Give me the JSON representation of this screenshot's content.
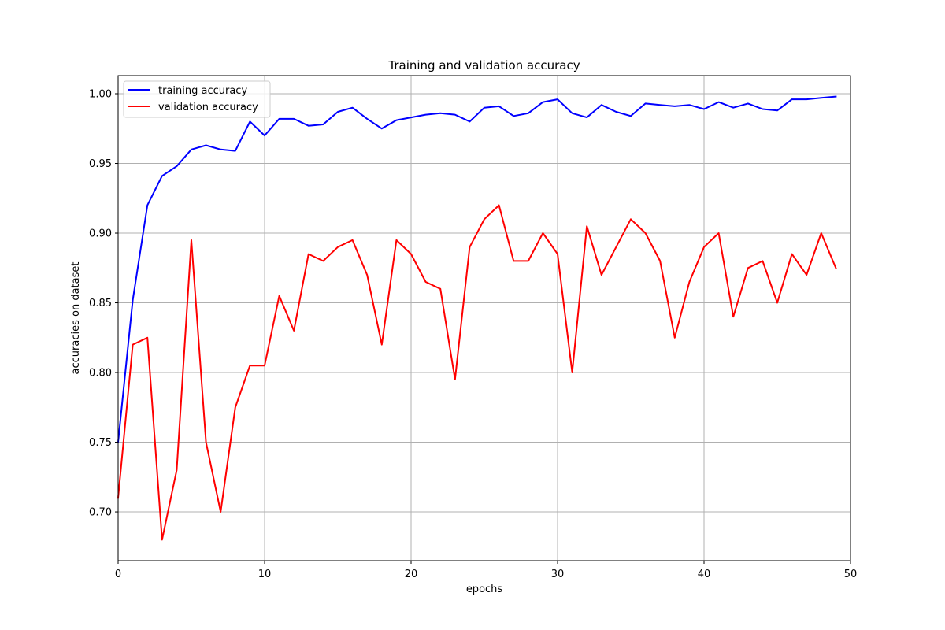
{
  "chart_data": {
    "type": "line",
    "title": "Training and validation accuracy",
    "xlabel": "epochs",
    "ylabel": "accuracies on dataset",
    "xlim": [
      0,
      50
    ],
    "ylim": [
      0.665,
      1.013
    ],
    "xticks": [
      0,
      10,
      20,
      30,
      40,
      50
    ],
    "yticks": [
      0.7,
      0.75,
      0.8,
      0.85,
      0.9,
      0.95,
      1.0
    ],
    "xtick_labels": [
      "0",
      "10",
      "20",
      "30",
      "40",
      "50"
    ],
    "ytick_labels": [
      "0.70",
      "0.75",
      "0.80",
      "0.85",
      "0.90",
      "0.95",
      "1.00"
    ],
    "grid": true,
    "legend_position": "top-left",
    "x": [
      0,
      1,
      2,
      3,
      4,
      5,
      6,
      7,
      8,
      9,
      10,
      11,
      12,
      13,
      14,
      15,
      16,
      17,
      18,
      19,
      20,
      21,
      22,
      23,
      24,
      25,
      26,
      27,
      28,
      29,
      30,
      31,
      32,
      33,
      34,
      35,
      36,
      37,
      38,
      39,
      40,
      41,
      42,
      43,
      44,
      45,
      46,
      47,
      48,
      49
    ],
    "series": [
      {
        "name": "training accuracy",
        "color": "#0000ff",
        "values": [
          0.75,
          0.852,
          0.92,
          0.941,
          0.948,
          0.96,
          0.963,
          0.96,
          0.959,
          0.98,
          0.97,
          0.982,
          0.982,
          0.977,
          0.978,
          0.987,
          0.99,
          0.982,
          0.975,
          0.981,
          0.983,
          0.985,
          0.986,
          0.985,
          0.98,
          0.99,
          0.991,
          0.984,
          0.986,
          0.994,
          0.996,
          0.986,
          0.983,
          0.992,
          0.987,
          0.984,
          0.993,
          0.992,
          0.991,
          0.992,
          0.989,
          0.994,
          0.99,
          0.993,
          0.989,
          0.988,
          0.996,
          0.996,
          0.997,
          0.998
        ]
      },
      {
        "name": "validation accuracy",
        "color": "#ff0000",
        "values": [
          0.71,
          0.82,
          0.825,
          0.68,
          0.73,
          0.895,
          0.75,
          0.7,
          0.775,
          0.805,
          0.805,
          0.855,
          0.83,
          0.885,
          0.88,
          0.89,
          0.895,
          0.87,
          0.82,
          0.895,
          0.885,
          0.865,
          0.86,
          0.795,
          0.89,
          0.91,
          0.92,
          0.88,
          0.88,
          0.9,
          0.885,
          0.8,
          0.905,
          0.87,
          0.89,
          0.91,
          0.9,
          0.88,
          0.825,
          0.865,
          0.89,
          0.9,
          0.84,
          0.875,
          0.88,
          0.85,
          0.885,
          0.87,
          0.9,
          0.875
        ]
      }
    ]
  }
}
